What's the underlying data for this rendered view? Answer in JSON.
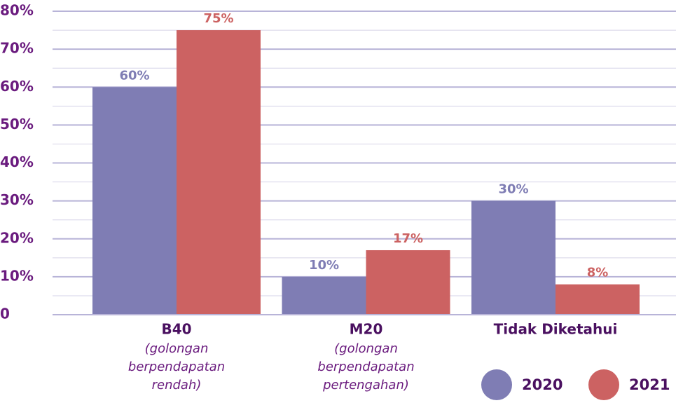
{
  "chart_data": {
    "type": "bar",
    "categories": [
      "B40",
      "M20",
      "Tidak Diketahui"
    ],
    "category_notes": [
      "(golongan berpendapatan rendah)",
      "(golongan berpendapatan pertengahan)",
      null
    ],
    "series": [
      {
        "name": "2020",
        "color": "#7f7db4",
        "values": [
          60,
          10,
          30
        ],
        "value_labels": [
          "60%",
          "10%",
          "30%"
        ]
      },
      {
        "name": "2021",
        "color": "#cc6262",
        "values": [
          75,
          17,
          8
        ],
        "value_labels": [
          "75%",
          "17%",
          "8%"
        ]
      }
    ],
    "ylim": [
      0,
      80
    ],
    "yticks": [
      0,
      {
        "value": 10,
        "label": "10%"
      },
      {
        "value": 20,
        "label": "20%"
      },
      {
        "value": 30,
        "label": "30%"
      },
      {
        "value": 40,
        "label": "40%"
      },
      {
        "value": 50,
        "label": "50%"
      },
      {
        "value": 60,
        "label": "60%"
      },
      {
        "value": 70,
        "label": "70%"
      },
      {
        "value": 80,
        "label": "80%"
      }
    ],
    "minor_yticks": [
      5,
      15,
      25,
      35,
      45,
      55,
      65,
      75
    ],
    "grid": true,
    "legend": "bottom-right"
  }
}
